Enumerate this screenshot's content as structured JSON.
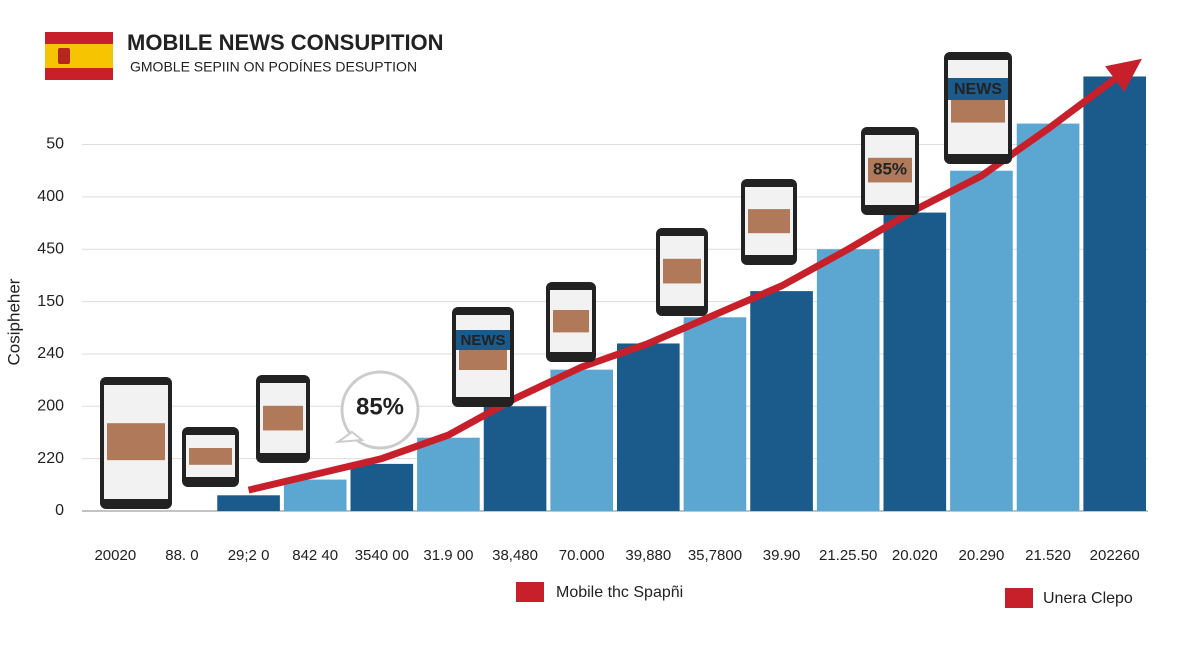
{
  "chart_data": {
    "type": "bar",
    "title": "MOBILE NEWS CONSUPITION",
    "subtitle": "GMOBLE SEPIIN ON PODÍNES DESUPTION",
    "y_label": "Cosipheher",
    "categories": [
      "20020",
      "88. 0",
      "29;2 0",
      "842 40",
      "3540 00",
      "31.9 00",
      "38,480",
      "70.000",
      "39,880",
      "35,7800",
      "39.90",
      "21.25.50",
      "20.020",
      "20.290",
      "21.520",
      "202260"
    ],
    "series": [
      {
        "name": "Unera Clepo",
        "color": "#c8202a",
        "type": "bar",
        "bar_colors": [
          null,
          null,
          "#1b5b8c",
          "#5ca6d2",
          "#1b5b8c",
          "#5ca6d2",
          "#1b5b8c",
          "#5ca6d2",
          "#1b5b8c",
          "#5ca6d2",
          "#1b5b8c",
          "#5ca6d2",
          "#1b5b8c",
          "#5ca6d2",
          "#5ca6d2",
          "#1b5b8c"
        ],
        "values": [
          null,
          null,
          0.3,
          0.6,
          0.9,
          1.4,
          2.0,
          2.7,
          3.2,
          3.7,
          4.2,
          5.0,
          5.7,
          6.5,
          7.4,
          8.3
        ]
      },
      {
        "name": "Mobile thc Spapñi",
        "color": "#c8202a",
        "type": "line",
        "values": [
          null,
          null,
          0.4,
          0.7,
          1.0,
          1.45,
          2.15,
          2.75,
          3.2,
          3.75,
          4.3,
          5.0,
          5.75,
          6.4,
          7.3,
          8.25
        ]
      }
    ],
    "ylim": [
      0,
      8.5
    ],
    "yticks": [
      0,
      {
        "value": 1,
        "label": "220"
      },
      {
        "value": 2,
        "label": "200"
      },
      {
        "value": 3,
        "label": "240"
      },
      {
        "value": 4,
        "label": "150"
      },
      {
        "value": 5,
        "label": "450"
      },
      {
        "value": 6,
        "label": "400"
      },
      {
        "value": 7,
        "label": "50"
      }
    ],
    "grid": true,
    "annotations": [
      "85%",
      "NEWS",
      "85%",
      "NEWS"
    ]
  }
}
